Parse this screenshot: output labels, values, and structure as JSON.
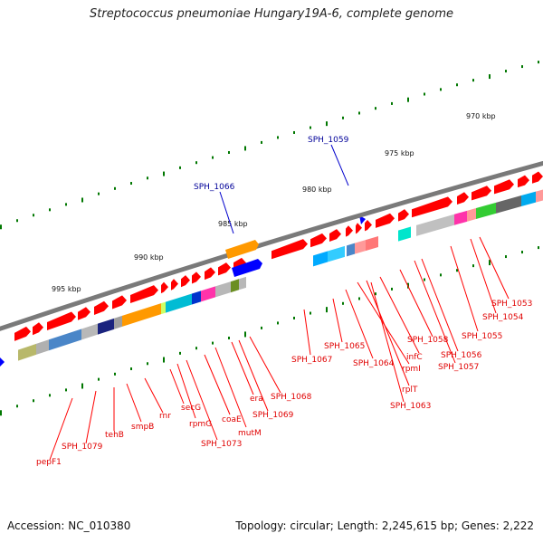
{
  "title": "Streptococcus pneumoniae Hungary19A-6, complete genome",
  "footer": {
    "accession": "Accession: NC_010380",
    "summary": "Topology: circular; Length: 2,245,615 bp; Genes: 2,222"
  },
  "kbp_ticks": [
    "970 kbp",
    "975 kbp",
    "980 kbp",
    "985 kbp",
    "990 kbp",
    "995 kbp"
  ],
  "top_labels": [
    "SPH_1066",
    "SPH_1059"
  ],
  "gene_labels": [
    "pepF1",
    "SPH_1079",
    "tehB",
    "smpB",
    "rnr",
    "secG",
    "rpmG",
    "SPH_1073",
    "coaE",
    "mutM",
    "era",
    "SPH_1069",
    "SPH_1068",
    "SPH_1067",
    "SPH_1065",
    "SPH_1064",
    "rpmI",
    "rplT",
    "SPH_1063",
    "infC",
    "SPH_1058",
    "SPH_1057",
    "SPH_1056",
    "SPH_1055",
    "SPH_1054",
    "SPH_1053"
  ],
  "colors": {
    "backbone": "#808080",
    "gene_forward": "#ff0000",
    "label_red": "#e00000",
    "label_blue": "#000099",
    "tick_green": "#007700"
  }
}
